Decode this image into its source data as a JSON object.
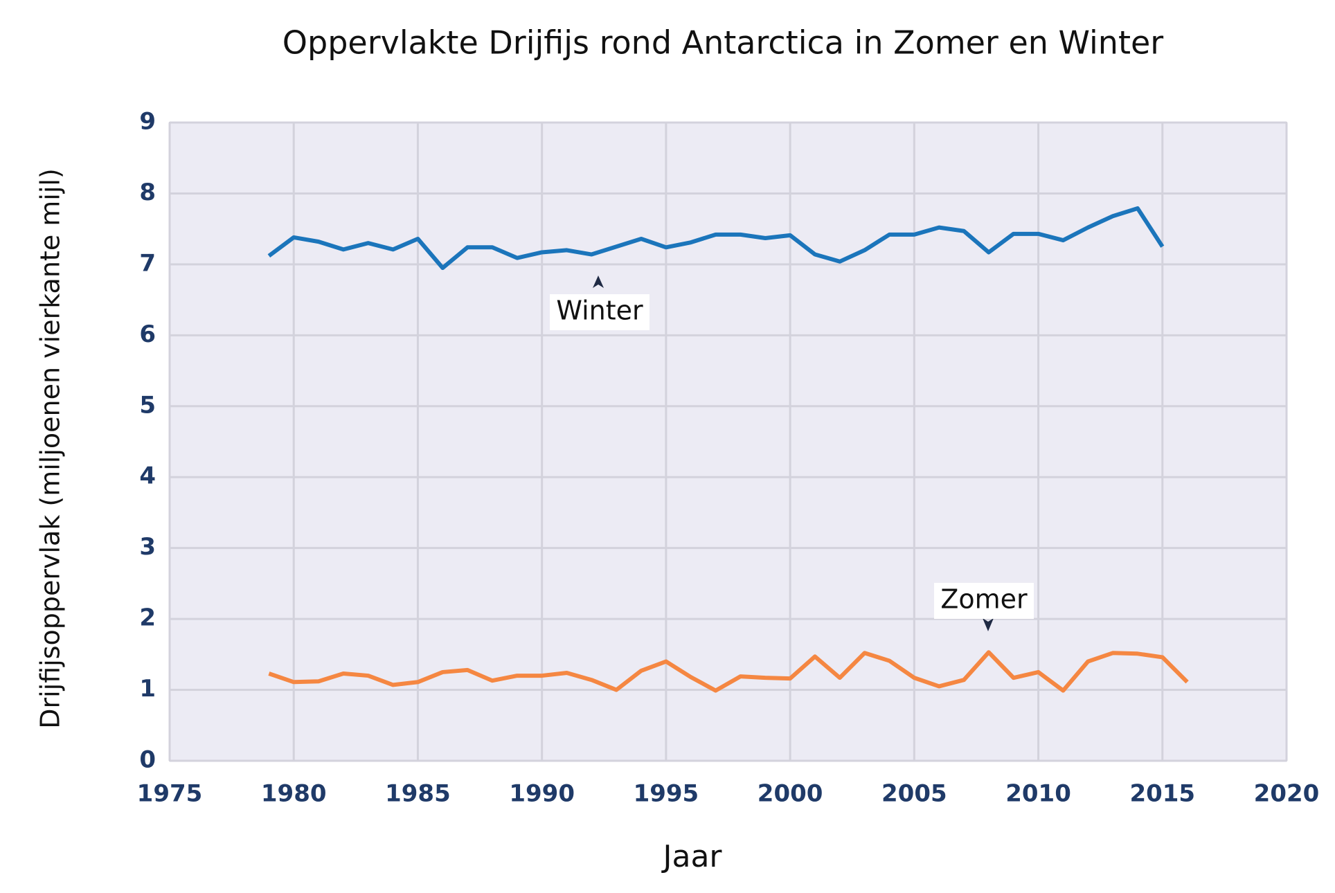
{
  "chart_data": {
    "type": "line",
    "title": "Oppervlakte Drijfijs rond Antarctica in Zomer en Winter",
    "x_label": "Jaar",
    "y_label": "Drijfijsoppervlak (miljoenen vierkante mijl)",
    "x": [
      1979,
      1980,
      1981,
      1982,
      1983,
      1984,
      1985,
      1986,
      1987,
      1988,
      1989,
      1990,
      1991,
      1992,
      1993,
      1994,
      1995,
      1996,
      1997,
      1998,
      1999,
      2000,
      2001,
      2002,
      2003,
      2004,
      2005,
      2006,
      2007,
      2008,
      2009,
      2010,
      2011,
      2012,
      2013,
      2014,
      2015,
      2016
    ],
    "series": [
      {
        "name": "Winter",
        "color": "#1b75bb",
        "values": [
          7.12,
          7.38,
          7.32,
          7.21,
          7.3,
          7.21,
          7.36,
          6.95,
          7.24,
          7.24,
          7.09,
          7.17,
          7.2,
          7.14,
          7.25,
          7.36,
          7.24,
          7.31,
          7.42,
          7.42,
          7.37,
          7.41,
          7.14,
          7.04,
          7.2,
          7.42,
          7.42,
          7.52,
          7.47,
          7.17,
          7.43,
          7.43,
          7.34,
          7.52,
          7.68,
          7.79,
          7.25,
          null
        ]
      },
      {
        "name": "Zomer",
        "color": "#f58742",
        "values": [
          1.23,
          1.11,
          1.12,
          1.23,
          1.2,
          1.07,
          1.11,
          1.25,
          1.28,
          1.13,
          1.2,
          1.2,
          1.24,
          1.14,
          1.0,
          1.27,
          1.4,
          1.18,
          0.99,
          1.19,
          1.17,
          1.16,
          1.47,
          1.17,
          1.52,
          1.41,
          1.17,
          1.05,
          1.14,
          1.53,
          1.17,
          1.25,
          0.99,
          1.4,
          1.52,
          1.51,
          1.46,
          1.11
        ]
      }
    ],
    "xlim": [
      1975,
      2020
    ],
    "xticks": [
      1975,
      1980,
      1985,
      1990,
      1995,
      2000,
      2005,
      2010,
      2015,
      2020
    ],
    "ylim": [
      0,
      9
    ],
    "yticks": [
      0,
      1,
      2,
      3,
      4,
      5,
      6,
      7,
      8,
      9
    ],
    "grid": true
  }
}
